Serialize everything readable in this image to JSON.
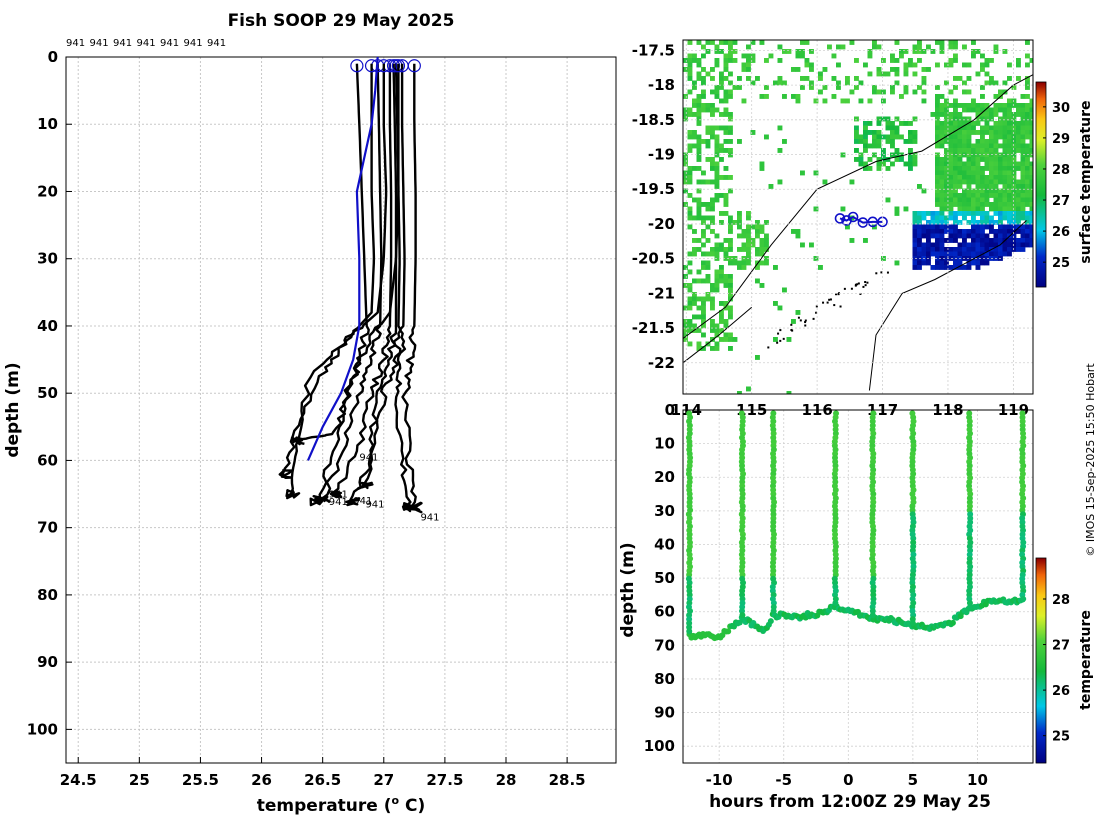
{
  "title": "Fish SOOP 29 May 2025",
  "credit": "© IMOS 15-Sep-2025 15:50 Hobart",
  "chart_data": [
    {
      "id": "profiles",
      "type": "line",
      "xlabel": "temperature (",
      "xlabel_sup": "o",
      "xlabel_tail": " C)",
      "ylabel": "depth (m)",
      "xlim": [
        24.4,
        28.9
      ],
      "ylim": [
        105,
        0
      ],
      "xticks": [
        "24.5",
        "25",
        "25.5",
        "26",
        "26.5",
        "27",
        "27.5",
        "28",
        "28.5"
      ],
      "yticks": [
        "0",
        "10",
        "20",
        "30",
        "40",
        "50",
        "60",
        "70",
        "80",
        "90",
        "100"
      ],
      "top_tags": [
        "941",
        "941",
        "941",
        "941",
        "941",
        "941",
        "941"
      ],
      "mean_profile": {
        "name": "mean",
        "color": "#1010c8",
        "depth": [
          0,
          5,
          10,
          20,
          30,
          40,
          45,
          50,
          55,
          60
        ],
        "temp": [
          26.95,
          26.93,
          26.9,
          26.78,
          26.8,
          26.8,
          26.75,
          26.65,
          26.5,
          26.38
        ]
      },
      "profiles": [
        {
          "name": "p1",
          "temp": [
            26.78,
            26.8,
            26.82,
            26.84,
            26.86,
            26.8,
            26.72,
            26.6,
            26.3
          ],
          "depth": [
            1,
            10,
            20,
            30,
            40,
            45,
            50,
            56,
            57
          ]
        },
        {
          "name": "p2",
          "temp": [
            26.95,
            26.96,
            26.97,
            26.98,
            26.97,
            26.9,
            26.8,
            26.68,
            26.5
          ],
          "depth": [
            1,
            10,
            20,
            30,
            40,
            45,
            50,
            58,
            66
          ]
        },
        {
          "name": "p3",
          "temp": [
            27.05,
            27.05,
            27.06,
            27.06,
            27.05,
            27.0,
            26.9,
            26.8,
            26.6
          ],
          "depth": [
            1,
            10,
            20,
            30,
            40,
            45,
            50,
            58,
            65
          ]
        },
        {
          "name": "p4",
          "temp": [
            27.08,
            27.09,
            27.1,
            27.1,
            27.1,
            27.05,
            26.95,
            26.9,
            26.85
          ],
          "depth": [
            1,
            10,
            20,
            30,
            40,
            45,
            50,
            58,
            64
          ]
        },
        {
          "name": "p5",
          "temp": [
            27.1,
            27.11,
            27.12,
            27.13,
            27.12,
            27.1,
            27.0,
            26.9,
            26.75
          ],
          "depth": [
            1,
            10,
            20,
            30,
            40,
            45,
            50,
            60,
            66
          ]
        },
        {
          "name": "p6",
          "temp": [
            27.15,
            27.15,
            27.16,
            27.17,
            27.16,
            27.14,
            27.1,
            27.15,
            27.2
          ],
          "depth": [
            1,
            10,
            20,
            30,
            40,
            45,
            50,
            60,
            67
          ]
        },
        {
          "name": "p7",
          "temp": [
            27.25,
            27.25,
            27.26,
            27.26,
            27.25,
            27.22,
            27.18,
            27.2,
            27.25
          ],
          "depth": [
            1,
            10,
            20,
            30,
            40,
            45,
            50,
            60,
            67
          ]
        },
        {
          "name": "p8",
          "temp": [
            26.9,
            26.9,
            26.9,
            26.92,
            26.9,
            26.7,
            26.5,
            26.3,
            26.2
          ],
          "depth": [
            1,
            10,
            20,
            30,
            38,
            42,
            47,
            55,
            62
          ]
        },
        {
          "name": "p9",
          "temp": [
            27.0,
            27.0,
            27.02,
            27.0,
            26.95,
            26.7,
            26.4,
            26.3,
            26.25
          ],
          "depth": [
            1,
            10,
            20,
            30,
            38,
            42,
            47,
            58,
            65
          ]
        },
        {
          "name": "p10",
          "temp": [
            27.12,
            27.12,
            27.12,
            27.1,
            27.05,
            26.85,
            26.7,
            26.6,
            26.45
          ],
          "depth": [
            1,
            10,
            20,
            30,
            38,
            43,
            50,
            58,
            66
          ]
        }
      ],
      "end_tags": [
        "941",
        "941",
        "941",
        "941",
        "941",
        "941"
      ]
    },
    {
      "id": "sst_map",
      "type": "heatmap",
      "colorbar_label": "surface temperature",
      "xlim": [
        113.95,
        119.3
      ],
      "ylim": [
        -22.45,
        -17.35
      ],
      "xticks": [
        "114",
        "115",
        "116",
        "117",
        "118",
        "119"
      ],
      "yticks": [
        "-17.5",
        "-18",
        "-18.5",
        "-19",
        "-19.5",
        "-20",
        "-20.5",
        "-21",
        "-21.5",
        "-22"
      ],
      "ytick_values": [
        -17.5,
        -18,
        -18.5,
        -19,
        -19.5,
        -20,
        -20.5,
        -21,
        -21.5,
        -22
      ],
      "xtick_values": [
        114,
        115,
        116,
        117,
        118,
        119
      ],
      "crange": [
        24.2,
        30.8
      ],
      "cticks": [
        "25",
        "26",
        "27",
        "28",
        "29",
        "30"
      ],
      "ctick_values": [
        25,
        26,
        27,
        28,
        29,
        30
      ],
      "track": {
        "lon": [
          116.35,
          116.45,
          116.55,
          116.7,
          116.85,
          117.0
        ],
        "lat": [
          -19.92,
          -19.95,
          -19.9,
          -19.98,
          -19.97,
          -19.97
        ]
      }
    },
    {
      "id": "section",
      "type": "scatter",
      "xlabel": "hours from 12:00Z 29 May 25",
      "ylabel": "depth (m)",
      "colorbar_label": "temperature",
      "xlim": [
        -12.8,
        14.3
      ],
      "ylim": [
        105,
        0
      ],
      "xticks": [
        "-10",
        "-5",
        "0",
        "5",
        "10"
      ],
      "xtick_values": [
        -10,
        -5,
        0,
        5,
        10
      ],
      "yticks": [
        "0",
        "10",
        "20",
        "30",
        "40",
        "50",
        "60",
        "70",
        "80",
        "90",
        "100"
      ],
      "crange": [
        24.4,
        28.9
      ],
      "cticks": [
        "25",
        "26",
        "27",
        "28"
      ],
      "ctick_values": [
        25,
        26,
        27,
        28
      ],
      "casts_hours": [
        -12.3,
        -8.2,
        -5.8,
        -1.0,
        1.9,
        5.0,
        9.4,
        13.5
      ],
      "bottom_hours": [
        -12.3,
        -10,
        -8.2,
        -6.5,
        -5.8,
        -4,
        -2,
        -1.0,
        1.9,
        3.5,
        5.0,
        6.5,
        8,
        9.4,
        11,
        13.5
      ],
      "bottom_depth": [
        67,
        67.5,
        62,
        66,
        61,
        61.5,
        60.5,
        58.5,
        62,
        62.5,
        64,
        65,
        63,
        59,
        57,
        57
      ]
    }
  ]
}
